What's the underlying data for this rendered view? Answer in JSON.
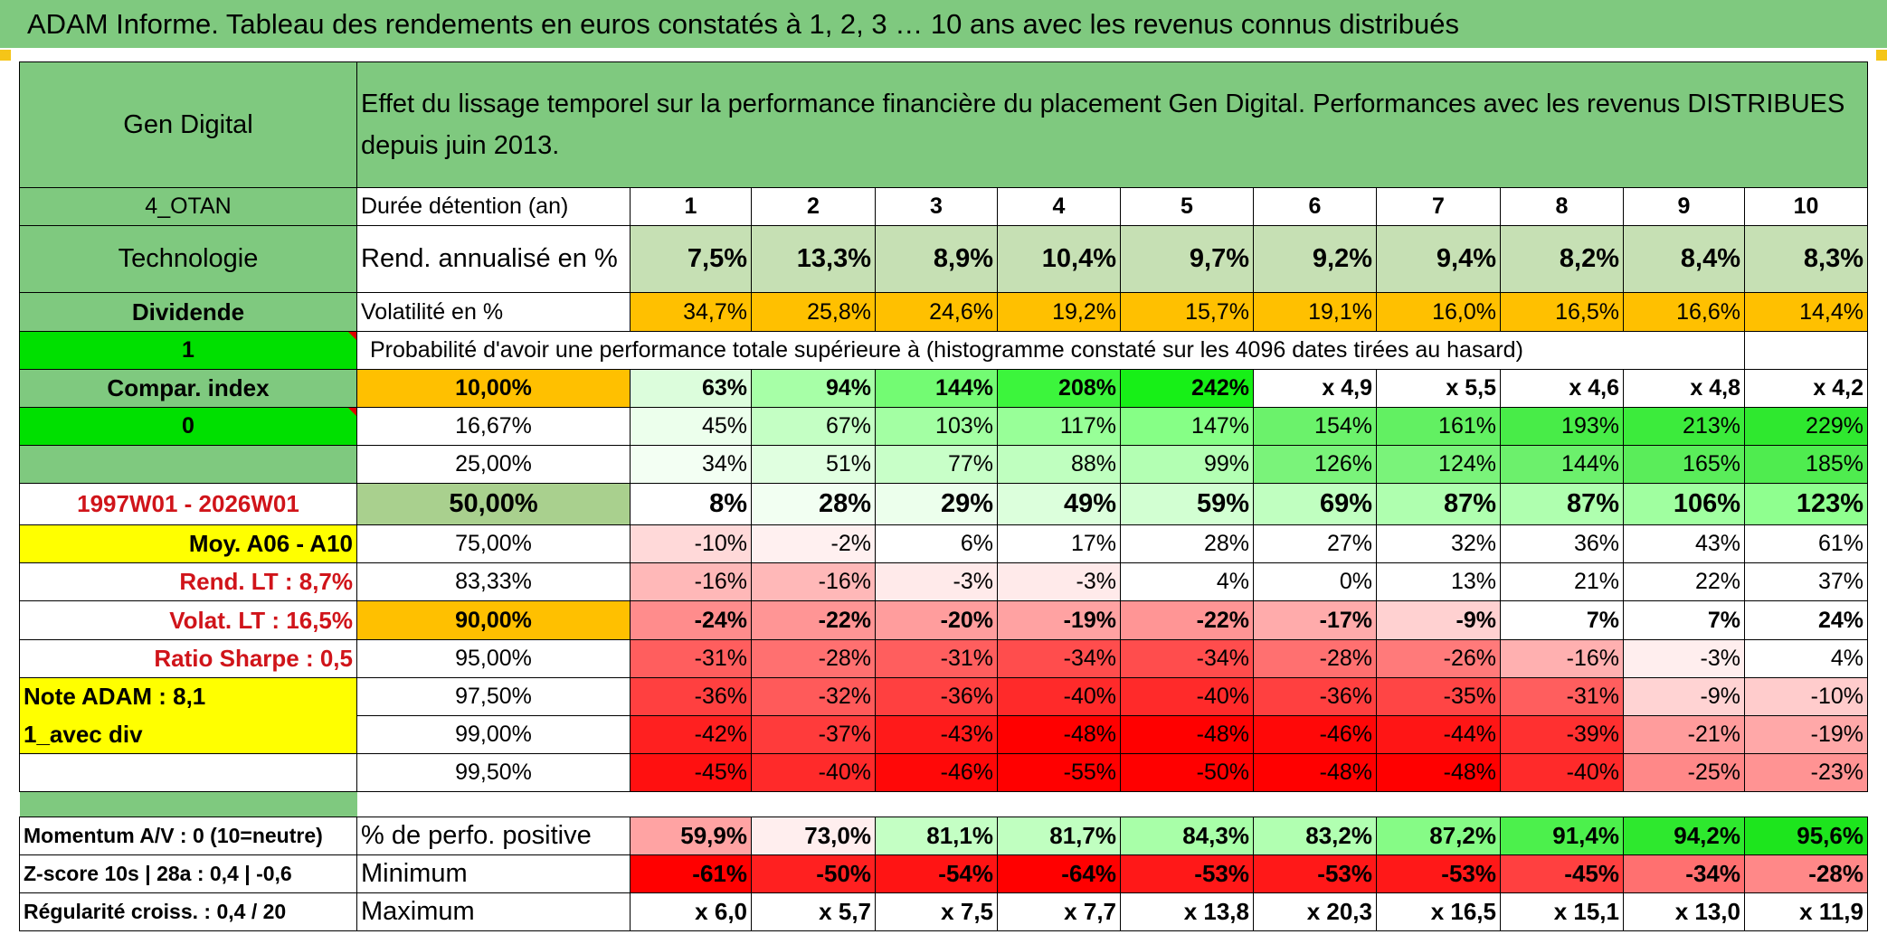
{
  "title": "ADAM Informe. Tableau des rendements en euros constatés à 1, 2, 3 … 10 ans avec les revenus connus distribués",
  "header": {
    "name": "Gen Digital",
    "description": "Effet du lissage temporel sur la performance financière du placement Gen Digital. Performances avec les revenus DISTRIBUES depuis juin 2013."
  },
  "left": {
    "code": "4_OTAN",
    "sector": "Technologie",
    "dividend_label": "Dividende",
    "flag1": "1",
    "compar_index": "Compar. index",
    "flag0": "0",
    "period": "1997W01 - 2026W01",
    "moy": "Moy. A06 - A10",
    "rend_lt": "Rend. LT :   8,7%",
    "volat_lt": "Volat. LT :   16,5%",
    "sharpe": "Ratio Sharpe :    0,5",
    "note": "Note ADAM : 8,1",
    "avec_div": "1_avec div"
  },
  "labels": {
    "duree": "Durée détention (an)",
    "rend": "Rend. annualisé en %",
    "vol": "Volatilité en %",
    "proba": "Probabilité d'avoir une performance totale supérieure à (histogramme constaté sur les 4096 dates tirées au hasard)",
    "pos": "% de perfo. positive",
    "min": "Minimum",
    "max": "Maximum"
  },
  "years": [
    "1",
    "2",
    "3",
    "4",
    "5",
    "6",
    "7",
    "8",
    "9",
    "10"
  ],
  "rendement": [
    "7,5%",
    "13,3%",
    "8,9%",
    "10,4%",
    "9,7%",
    "9,2%",
    "9,4%",
    "8,2%",
    "8,4%",
    "8,3%"
  ],
  "volatilite": [
    "34,7%",
    "25,8%",
    "24,6%",
    "19,2%",
    "15,7%",
    "19,1%",
    "16,0%",
    "16,5%",
    "16,6%",
    "14,4%"
  ],
  "percentile_rows": [
    {
      "pct": "10,00%",
      "values": [
        "63%",
        "94%",
        "144%",
        "208%",
        "242%",
        "x 4,9",
        "x 5,5",
        "x 4,6",
        "x 4,8",
        "x 4,2"
      ],
      "colors": [
        "#dcfddc",
        "#a7ffa7",
        "#73fb73",
        "#3cf53c",
        "#17f017",
        "#ffffff",
        "#ffffff",
        "#ffffff",
        "#ffffff",
        "#ffffff"
      ]
    },
    {
      "pct": "16,67%",
      "values": [
        "45%",
        "67%",
        "103%",
        "117%",
        "147%",
        "154%",
        "161%",
        "193%",
        "213%",
        "229%"
      ],
      "colors": [
        "#ecffec",
        "#c4ffc4",
        "#a3ffa3",
        "#98ff98",
        "#86ff86",
        "#6bf26b",
        "#62f062",
        "#48ec48",
        "#3ceb3c",
        "#2fe82f"
      ]
    },
    {
      "pct": "25,00%",
      "values": [
        "34%",
        "51%",
        "77%",
        "88%",
        "99%",
        "126%",
        "124%",
        "144%",
        "165%",
        "185%"
      ],
      "colors": [
        "#f3fff3",
        "#e0ffe0",
        "#c8ffc8",
        "#bfffbf",
        "#b3ffb3",
        "#7af37a",
        "#7af37a",
        "#6cf06c",
        "#5aed5a",
        "#4fec4f"
      ]
    },
    {
      "pct": "50,00%",
      "values": [
        "8%",
        "28%",
        "29%",
        "49%",
        "59%",
        "69%",
        "87%",
        "87%",
        "106%",
        "123%"
      ],
      "colors": [
        "#ffffff",
        "#f2fff2",
        "#ecffec",
        "#dcffdc",
        "#d2ffd2",
        "#c0ffc0",
        "#afffaf",
        "#afffaf",
        "#a0ffa0",
        "#8fff8f"
      ]
    },
    {
      "pct": "75,00%",
      "values": [
        "-10%",
        "-2%",
        "6%",
        "17%",
        "28%",
        "27%",
        "32%",
        "36%",
        "43%",
        "61%"
      ],
      "colors": [
        "#ffd9d9",
        "#fff0f0",
        "#ffffff",
        "#ffffff",
        "#ffffff",
        "#ffffff",
        "#ffffff",
        "#ffffff",
        "#ffffff",
        "#ffffff"
      ]
    },
    {
      "pct": "83,33%",
      "values": [
        "-16%",
        "-16%",
        "-3%",
        "-3%",
        "4%",
        "0%",
        "13%",
        "21%",
        "22%",
        "37%"
      ],
      "colors": [
        "#ffb8b8",
        "#ffb8b8",
        "#ffeaea",
        "#ffeaea",
        "#ffffff",
        "#ffffff",
        "#ffffff",
        "#ffffff",
        "#ffffff",
        "#ffffff"
      ]
    },
    {
      "pct": "90,00%",
      "values": [
        "-24%",
        "-22%",
        "-20%",
        "-19%",
        "-22%",
        "-17%",
        "-9%",
        "7%",
        "7%",
        "24%"
      ],
      "colors": [
        "#ff8c8c",
        "#ff9595",
        "#ff9d9d",
        "#ffa2a2",
        "#ff9595",
        "#ffabab",
        "#ffd1d1",
        "#ffffff",
        "#ffffff",
        "#ffffff"
      ]
    },
    {
      "pct": "95,00%",
      "values": [
        "-31%",
        "-28%",
        "-31%",
        "-34%",
        "-34%",
        "-28%",
        "-26%",
        "-16%",
        "-3%",
        "4%"
      ],
      "colors": [
        "#ff5e5e",
        "#ff7070",
        "#ff5e5e",
        "#ff4d4d",
        "#ff4d4d",
        "#ff7070",
        "#ff7a7a",
        "#ffb0b0",
        "#ffeeee",
        "#ffffff"
      ]
    },
    {
      "pct": "97,50%",
      "values": [
        "-36%",
        "-32%",
        "-36%",
        "-40%",
        "-40%",
        "-36%",
        "-35%",
        "-31%",
        "-9%",
        "-10%"
      ],
      "colors": [
        "#ff4040",
        "#ff5a5a",
        "#ff4040",
        "#ff2a2a",
        "#ff2a2a",
        "#ff4040",
        "#ff4545",
        "#ff5e5e",
        "#ffd3d3",
        "#ffcccc"
      ]
    },
    {
      "pct": "99,00%",
      "values": [
        "-42%",
        "-37%",
        "-43%",
        "-48%",
        "-48%",
        "-46%",
        "-44%",
        "-39%",
        "-21%",
        "-19%"
      ],
      "colors": [
        "#ff2020",
        "#ff3b3b",
        "#ff1a1a",
        "#ff0000",
        "#ff0000",
        "#ff0808",
        "#ff1515",
        "#ff3030",
        "#ff9c9c",
        "#ffa8a8"
      ]
    },
    {
      "pct": "99,50%",
      "values": [
        "-45%",
        "-40%",
        "-46%",
        "-55%",
        "-50%",
        "-48%",
        "-48%",
        "-40%",
        "-25%",
        "-23%"
      ],
      "colors": [
        "#ff1010",
        "#ff2a2a",
        "#ff0808",
        "#ff0000",
        "#ff0000",
        "#ff0000",
        "#ff0000",
        "#ff2a2a",
        "#ff8888",
        "#ff9393"
      ]
    }
  ],
  "bottom": {
    "momentum": "Momentum A/V : 0 (10=neutre)",
    "zscore": "Z-score 10s | 28a : 0,4 | -0,6",
    "regularite": "Régularité croiss. : 0,4 / 20",
    "positive": [
      "59,9%",
      "73,0%",
      "81,1%",
      "81,7%",
      "84,3%",
      "83,2%",
      "87,2%",
      "91,4%",
      "94,2%",
      "95,6%"
    ],
    "positive_colors": [
      "#ffa3a3",
      "#ffeeee",
      "#c4ffc4",
      "#c0ffc0",
      "#a8ffa8",
      "#b1ffb1",
      "#86fb86",
      "#4cf04c",
      "#2ee82e",
      "#1de51d"
    ],
    "minimum": [
      "-61%",
      "-50%",
      "-54%",
      "-64%",
      "-53%",
      "-53%",
      "-53%",
      "-45%",
      "-34%",
      "-28%"
    ],
    "minimum_colors": [
      "#ff0000",
      "#ff2020",
      "#ff1414",
      "#ff0000",
      "#ff1818",
      "#ff1818",
      "#ff1818",
      "#ff4040",
      "#ff7070",
      "#ff8888"
    ],
    "maximum": [
      "x 6,0",
      "x 5,7",
      "x 7,5",
      "x 7,7",
      "x 13,8",
      "x 20,3",
      "x 16,5",
      "x 15,1",
      "x 13,0",
      "x 11,9"
    ]
  },
  "colors": {
    "header_green": "#7fc97f",
    "light_green": "#c6e0b4",
    "orange": "#ffc000",
    "bright_green": "#00e000",
    "yellow": "#ffff00",
    "olive": "#a9d08e",
    "red_text": "#d0141a"
  }
}
